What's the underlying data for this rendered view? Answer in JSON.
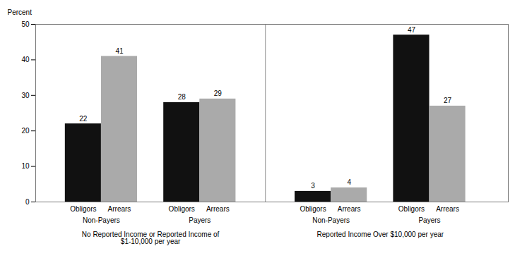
{
  "chart_data": {
    "type": "bar",
    "ylabel": "Percent",
    "categories": [
      "Non-Payers",
      "Payers",
      "Non-Payers",
      "Payers"
    ],
    "series": [
      {
        "name": "Obligors",
        "color": "#111111",
        "values": [
          22,
          28,
          3,
          47
        ]
      },
      {
        "name": "Arrears",
        "color": "#aaaaaa",
        "values": [
          41,
          29,
          4,
          27
        ]
      }
    ],
    "category_groups": [
      "No Reported Income or Reported Income of\n$1-10,000 per year",
      "Reported Income Over $10,000 per year"
    ],
    "ylim": [
      0,
      50
    ],
    "yticks": [
      0,
      10,
      20,
      30,
      40,
      50
    ],
    "grid": false,
    "data_labels": true
  }
}
